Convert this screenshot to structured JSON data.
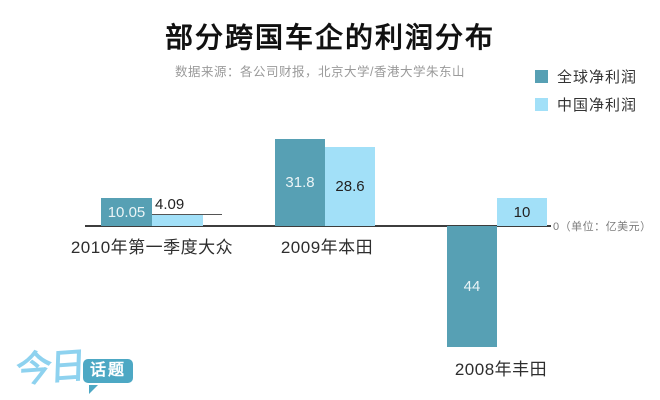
{
  "header": {
    "title": "部分跨国车企的利润分布",
    "subtitle": "数据来源：各公司财报，北京大学/香港大学朱东山"
  },
  "legend": {
    "items": [
      {
        "label": "全球净利润",
        "color": "#57a0b4"
      },
      {
        "label": "中国净利润",
        "color": "#a2e0f8"
      }
    ]
  },
  "axis": {
    "zero_label": "0（单位：亿美元）"
  },
  "logo": {
    "script_text": "今日",
    "bubble_text": "话题"
  },
  "colors": {
    "global_bar": "#57a0b4",
    "china_bar": "#a2e0f8",
    "logo_blue": "#8ed2ef",
    "logo_teal": "#4da8c4"
  },
  "chart_data": {
    "type": "bar",
    "title": "部分跨国车企的利润分布",
    "unit": "亿美元",
    "categories": [
      "2010年第一季度大众",
      "2009年本田",
      "2008年丰田"
    ],
    "series": [
      {
        "name": "全球净利润",
        "values": [
          10.05,
          31.8,
          -44
        ],
        "display": [
          "10.05",
          "31.8",
          "44"
        ]
      },
      {
        "name": "中国净利润",
        "values": [
          4.09,
          28.6,
          10
        ],
        "display": [
          "4.09",
          "28.6",
          "10"
        ]
      }
    ],
    "baseline": 0,
    "grid": false,
    "legend_position": "top-right"
  }
}
